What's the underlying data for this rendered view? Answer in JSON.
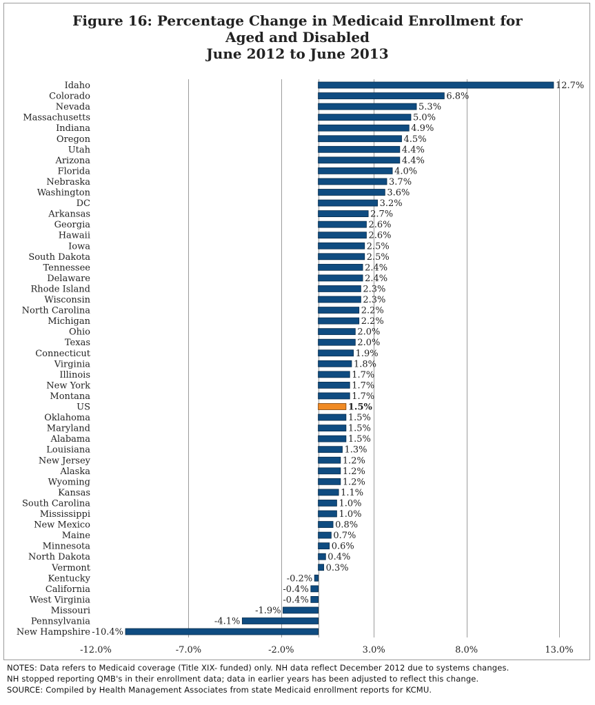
{
  "title": {
    "line1": "Figure 16: Percentage Change in Medicaid Enrollment for",
    "line2": "Aged and Disabled",
    "line3": "June 2012 to June 2013"
  },
  "colors": {
    "bar": "#0f4c81",
    "highlight": "#f08a24",
    "grid": "#9a9a9a",
    "text": "#222222"
  },
  "chart_data": {
    "type": "bar",
    "orientation": "horizontal",
    "title": "Figure 16: Percentage Change in Medicaid Enrollment for Aged and Disabled June 2012 to June 2013",
    "xlabel": "",
    "ylabel": "",
    "xlim": [
      -12.0,
      13.0
    ],
    "xticks": [
      -12.0,
      -7.0,
      -2.0,
      3.0,
      8.0,
      13.0
    ],
    "xtick_labels": [
      "-12.0%",
      "-7.0%",
      "-2.0%",
      "3.0%",
      "8.0%",
      "13.0%"
    ],
    "grid": "vertical",
    "highlight_category": "US",
    "categories": [
      "Idaho",
      "Colorado",
      "Nevada",
      "Massachusetts",
      "Indiana",
      "Oregon",
      "Utah",
      "Arizona",
      "Florida",
      "Nebraska",
      "Washington",
      "DC",
      "Arkansas",
      "Georgia",
      "Hawaii",
      "Iowa",
      "South Dakota",
      "Tennessee",
      "Delaware",
      "Rhode Island",
      "Wisconsin",
      "North Carolina",
      "Michigan",
      "Ohio",
      "Texas",
      "Connecticut",
      "Virginia",
      "Illinois",
      "New York",
      "Montana",
      "US",
      "Oklahoma",
      "Maryland",
      "Alabama",
      "Louisiana",
      "New Jersey",
      "Alaska",
      "Wyoming",
      "Kansas",
      "South Carolina",
      "Mississippi",
      "New Mexico",
      "Maine",
      "Minnesota",
      "North Dakota",
      "Vermont",
      "Kentucky",
      "California",
      "West Virginia",
      "Missouri",
      "Pennsylvania",
      "New Hampshire"
    ],
    "values": [
      12.7,
      6.8,
      5.3,
      5.0,
      4.9,
      4.5,
      4.4,
      4.4,
      4.0,
      3.7,
      3.6,
      3.2,
      2.7,
      2.6,
      2.6,
      2.5,
      2.5,
      2.4,
      2.4,
      2.3,
      2.3,
      2.2,
      2.2,
      2.0,
      2.0,
      1.9,
      1.8,
      1.7,
      1.7,
      1.7,
      1.5,
      1.5,
      1.5,
      1.5,
      1.3,
      1.2,
      1.2,
      1.2,
      1.1,
      1.0,
      1.0,
      0.8,
      0.7,
      0.6,
      0.4,
      0.3,
      -0.2,
      -0.4,
      -0.4,
      -1.9,
      -4.1,
      -10.4
    ],
    "value_labels": [
      "12.7%",
      "6.8%",
      "5.3%",
      "5.0%",
      "4.9%",
      "4.5%",
      "4.4%",
      "4.4%",
      "4.0%",
      "3.7%",
      "3.6%",
      "3.2%",
      "2.7%",
      "2.6%",
      "2.6%",
      "2.5%",
      "2.5%",
      "2.4%",
      "2.4%",
      "2.3%",
      "2.3%",
      "2.2%",
      "2.2%",
      "2.0%",
      "2.0%",
      "1.9%",
      "1.8%",
      "1.7%",
      "1.7%",
      "1.7%",
      "1.5%",
      "1.5%",
      "1.5%",
      "1.5%",
      "1.3%",
      "1.2%",
      "1.2%",
      "1.2%",
      "1.1%",
      "1.0%",
      "1.0%",
      "0.8%",
      "0.7%",
      "0.6%",
      "0.4%",
      "0.3%",
      "-0.2%",
      "-0.4%",
      "-0.4%",
      "-1.9%",
      "-4.1%",
      "-10.4%"
    ]
  },
  "notes": {
    "line1": "NOTES: Data refers to Medicaid coverage (Title XIX- funded) only. NH data reflect December 2012 due to systems changes.",
    "line2": "NH stopped reporting QMB's in their enrollment data; data in earlier years has been adjusted to reflect this change.",
    "line3": "SOURCE: Compiled by Health Management Associates from state Medicaid enrollment reports for KCMU."
  }
}
